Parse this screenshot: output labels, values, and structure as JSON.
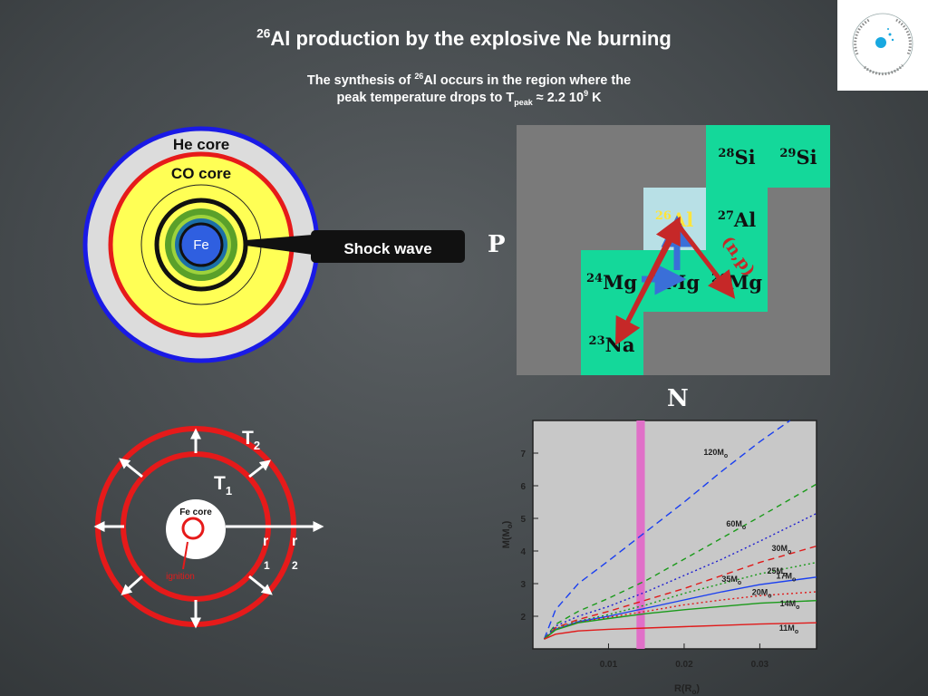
{
  "title": {
    "mass_number": "26",
    "text": "Al production by the explosive Ne burning"
  },
  "subtitle": {
    "part1": "The synthesis of ",
    "mass_number": "26",
    "part2": "Al occurs in the region where the",
    "line2_prefix": "peak temperature drops to  T",
    "peak_subscript": "peak",
    "line2_middle": " ≈ 2.2 10",
    "exponent": "9",
    "line2_suffix": " K"
  },
  "star_diagram": {
    "he_core_label": "He core",
    "co_core_label": "CO core",
    "fe_label": "Fe",
    "shock_wave_label": "Shock wave",
    "colors": {
      "he_ring": "#1a1ae6",
      "co_ring": "#e61a1a",
      "inner_fill": "#ffff55",
      "fe_fill": "#2f5fe0",
      "shell_green": "#5aa02a",
      "shell_lightgreen": "#9dd23c",
      "shell_teal": "#1b6fa8"
    }
  },
  "nuclide_chart": {
    "axis_p": "P",
    "axis_n": "N",
    "reaction_label": "(n,p)",
    "cells": [
      {
        "id": "si28",
        "mass": "28",
        "element": "Si"
      },
      {
        "id": "si29",
        "mass": "29",
        "element": "Si"
      },
      {
        "id": "al26",
        "mass": "26",
        "element": "Al"
      },
      {
        "id": "al27",
        "mass": "27",
        "element": "Al"
      },
      {
        "id": "mg24",
        "mass": "24",
        "element": "Mg"
      },
      {
        "id": "mg25",
        "mass": "25",
        "element": "Mg"
      },
      {
        "id": "mg26",
        "mass": "26",
        "element": "Mg"
      },
      {
        "id": "na23",
        "mass": "23",
        "element": "Na"
      }
    ],
    "colors": {
      "cell": "#14d89a",
      "al26_cell": "#b8e0e6",
      "background": "#7a7a7a",
      "arrow_red": "#c62828",
      "arrow_blue": "#3a6fd8"
    }
  },
  "shock_diagram": {
    "t2_label": "T",
    "t2_sub": "2",
    "t1_label": "T",
    "t1_sub": "1",
    "fe_core_label": "Fe core",
    "ignition_label": "ignition",
    "r1_label": "r",
    "r1_sub": "1",
    "r2_label": "r",
    "r2_sub": "2"
  },
  "chart_data": {
    "type": "line",
    "title": "",
    "xlabel": "R(R",
    "xlabel_sub": "o",
    "xlabel_close": ")",
    "ylabel": "M(M",
    "ylabel_sub": "o",
    "ylabel_close": ")",
    "xlim": [
      0.0,
      0.0375
    ],
    "ylim": [
      1.0,
      8.0
    ],
    "xticks": [
      0.01,
      0.02,
      0.03
    ],
    "xtick_labels": [
      "0.01",
      "0.02",
      "0.03"
    ],
    "yticks": [
      2,
      3,
      4,
      5,
      6,
      7
    ],
    "ytick_labels": [
      "2",
      "3",
      "4",
      "5",
      "6",
      "7"
    ],
    "highlight_band": {
      "x_range": [
        0.0137,
        0.0148
      ],
      "color": "#e070c8"
    },
    "background": "#c8c8c8",
    "series": [
      {
        "name": "120M",
        "color": "#1a3ff0",
        "dash": "8,5",
        "x": [
          0.0015,
          0.003,
          0.006,
          0.01,
          0.015,
          0.02,
          0.025,
          0.03,
          0.034
        ],
        "y": [
          1.3,
          2.2,
          3.0,
          3.7,
          4.6,
          5.5,
          6.45,
          7.35,
          8.0
        ]
      },
      {
        "name": "60M",
        "color": "#1a9a1a",
        "dash": "6,5",
        "x": [
          0.0015,
          0.003,
          0.006,
          0.01,
          0.015,
          0.02,
          0.025,
          0.03,
          0.0375
        ],
        "y": [
          1.3,
          1.75,
          2.15,
          2.55,
          3.1,
          3.75,
          4.4,
          5.05,
          6.05
        ]
      },
      {
        "name": "30M",
        "color": "#2020d0",
        "dash": "2,3",
        "x": [
          0.0015,
          0.003,
          0.006,
          0.01,
          0.015,
          0.02,
          0.025,
          0.03,
          0.0375
        ],
        "y": [
          1.3,
          1.7,
          2.0,
          2.3,
          2.75,
          3.25,
          3.75,
          4.3,
          5.15
        ]
      },
      {
        "name": "25M",
        "color": "#e01a1a",
        "dash": "7,5",
        "x": [
          0.0015,
          0.003,
          0.006,
          0.01,
          0.015,
          0.02,
          0.025,
          0.03,
          0.0375
        ],
        "y": [
          1.3,
          1.65,
          1.9,
          2.15,
          2.5,
          2.85,
          3.25,
          3.65,
          4.15
        ]
      },
      {
        "name": "35M",
        "color": "#1a9a1a",
        "dash": "2,3",
        "x": [
          0.0015,
          0.003,
          0.006,
          0.01,
          0.015,
          0.02,
          0.025,
          0.03,
          0.0375
        ],
        "y": [
          1.3,
          1.62,
          1.85,
          2.05,
          2.35,
          2.7,
          3.0,
          3.3,
          3.65
        ]
      },
      {
        "name": "17M",
        "color": "#1a3ff0",
        "dash": "",
        "x": [
          0.0015,
          0.003,
          0.006,
          0.01,
          0.015,
          0.02,
          0.025,
          0.03,
          0.0375
        ],
        "y": [
          1.3,
          1.6,
          1.83,
          2.0,
          2.25,
          2.5,
          2.75,
          2.97,
          3.2
        ]
      },
      {
        "name": "20M",
        "color": "#e01a1a",
        "dash": "2,3",
        "x": [
          0.0015,
          0.003,
          0.006,
          0.01,
          0.015,
          0.02,
          0.025,
          0.03,
          0.0375
        ],
        "y": [
          1.3,
          1.6,
          1.82,
          1.97,
          2.15,
          2.35,
          2.5,
          2.63,
          2.75
        ]
      },
      {
        "name": "14M",
        "color": "#1a9a1a",
        "dash": "",
        "x": [
          0.0015,
          0.003,
          0.006,
          0.01,
          0.015,
          0.02,
          0.025,
          0.03,
          0.0375
        ],
        "y": [
          1.3,
          1.58,
          1.8,
          1.93,
          2.08,
          2.2,
          2.3,
          2.4,
          2.48
        ]
      },
      {
        "name": "11M",
        "color": "#e01a1a",
        "dash": "",
        "x": [
          0.0015,
          0.003,
          0.006,
          0.01,
          0.015,
          0.02,
          0.025,
          0.03,
          0.0375
        ],
        "y": [
          1.3,
          1.45,
          1.55,
          1.6,
          1.64,
          1.68,
          1.72,
          1.76,
          1.8
        ]
      }
    ],
    "mass_label_sub": "o"
  }
}
